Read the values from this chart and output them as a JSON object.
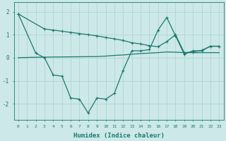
{
  "bg_color": "#cce8e8",
  "line_color": "#1a7a6e",
  "grid_color": "#afd0d0",
  "xlabel": "Humidex (Indice chaleur)",
  "xlim": [
    -0.5,
    23.5
  ],
  "ylim": [
    -2.7,
    2.4
  ],
  "yticks": [
    -2,
    -1,
    0,
    1,
    2
  ],
  "xticks": [
    0,
    1,
    2,
    3,
    4,
    5,
    6,
    7,
    8,
    9,
    10,
    11,
    12,
    13,
    14,
    15,
    16,
    17,
    18,
    19,
    20,
    21,
    22,
    23
  ],
  "series1_x": [
    0,
    2,
    3,
    4,
    5,
    6,
    7,
    8,
    9,
    10,
    11,
    12,
    13,
    14,
    15,
    16,
    17,
    18,
    19,
    20,
    21,
    22,
    23
  ],
  "series1_y": [
    1.9,
    0.2,
    0.0,
    -0.75,
    -0.8,
    -1.75,
    -1.8,
    -2.4,
    -1.75,
    -1.8,
    -1.55,
    -0.55,
    0.3,
    0.3,
    0.35,
    1.2,
    1.75,
    0.95,
    0.15,
    0.3,
    0.3,
    0.5,
    0.5
  ],
  "series2_x": [
    0,
    3,
    4,
    5,
    6,
    7,
    8,
    9,
    10,
    11,
    12,
    13,
    14,
    15,
    16,
    17,
    18,
    19,
    20,
    21,
    22,
    23
  ],
  "series2_y": [
    1.9,
    1.25,
    1.2,
    1.15,
    1.1,
    1.05,
    1.0,
    0.95,
    0.88,
    0.82,
    0.75,
    0.65,
    0.6,
    0.52,
    0.48,
    0.7,
    1.0,
    0.22,
    0.25,
    0.32,
    0.5,
    0.5
  ],
  "series3_x": [
    0,
    2,
    4,
    9,
    10,
    11,
    12,
    13,
    14,
    15,
    16,
    17,
    18,
    19,
    20,
    21,
    22,
    23
  ],
  "series3_y": [
    0.0,
    0.02,
    0.03,
    0.05,
    0.07,
    0.1,
    0.12,
    0.15,
    0.18,
    0.2,
    0.22,
    0.25,
    0.24,
    0.22,
    0.22,
    0.22,
    0.22,
    0.22
  ]
}
